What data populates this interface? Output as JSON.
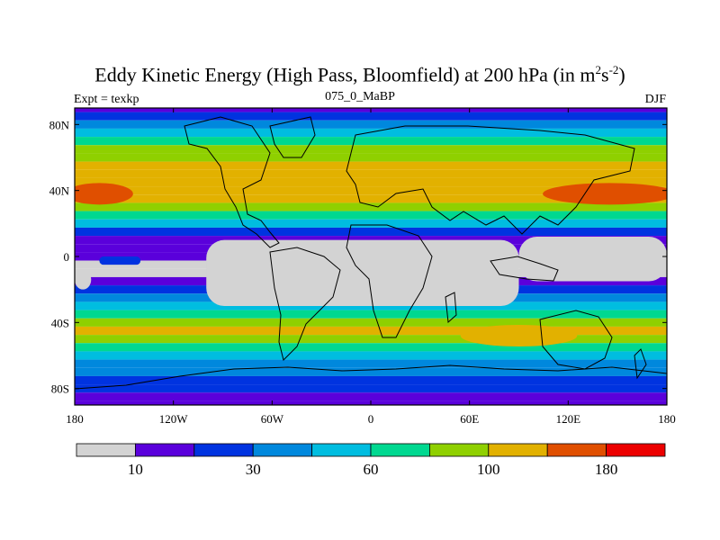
{
  "title": {
    "main": "Eddy Kinetic Energy (High Pass, Bloomfield) at 200 hPa (in m",
    "sup1": "2",
    "mid": "s",
    "sup2": "-2",
    "end": ")"
  },
  "left_label": "Expt = texkp",
  "center_label": "075_0_MaBP",
  "right_label": "DJF",
  "colors": {
    "bins": [
      "#d3d3d3",
      "#5a00db",
      "#0033e0",
      "#0088dd",
      "#00bde0",
      "#00d890",
      "#8fd000",
      "#e2b100",
      "#e04f00",
      "#ec0000"
    ],
    "frame": "#000000"
  },
  "chart_data": {
    "type": "heatmap",
    "title": "Eddy Kinetic Energy (High Pass, Bloomfield) at 200 hPa (in m^2 s^-2)",
    "x_axis": {
      "range": [
        -180,
        180
      ],
      "ticks": [
        -180,
        -120,
        -60,
        0,
        60,
        120,
        180
      ],
      "tick_labels": [
        "180",
        "120W",
        "60W",
        "0",
        "60E",
        "120E",
        "180"
      ]
    },
    "y_axis": {
      "range": [
        -90,
        90
      ],
      "ticks": [
        80,
        40,
        0,
        -40,
        -80
      ],
      "tick_labels": [
        "80N",
        "40N",
        "0",
        "40S",
        "80S"
      ]
    },
    "colorbar": {
      "levels": [
        10,
        30,
        60,
        100,
        180
      ],
      "level_labels": [
        "10",
        "30",
        "60",
        "100",
        "180"
      ],
      "n_bins": 10
    },
    "zonal_mean_bins": [
      {
        "lat": 90,
        "bin": 1
      },
      {
        "lat": 85,
        "bin": 2
      },
      {
        "lat": 80,
        "bin": 3
      },
      {
        "lat": 75,
        "bin": 4
      },
      {
        "lat": 70,
        "bin": 5
      },
      {
        "lat": 65,
        "bin": 6
      },
      {
        "lat": 60,
        "bin": 6
      },
      {
        "lat": 55,
        "bin": 7
      },
      {
        "lat": 50,
        "bin": 7
      },
      {
        "lat": 45,
        "bin": 7
      },
      {
        "lat": 40,
        "bin": 7
      },
      {
        "lat": 35,
        "bin": 7
      },
      {
        "lat": 30,
        "bin": 6
      },
      {
        "lat": 25,
        "bin": 5
      },
      {
        "lat": 20,
        "bin": 4
      },
      {
        "lat": 15,
        "bin": 2
      },
      {
        "lat": 10,
        "bin": 1
      },
      {
        "lat": 5,
        "bin": 1
      },
      {
        "lat": 0,
        "bin": 1
      },
      {
        "lat": -5,
        "bin": 0
      },
      {
        "lat": -10,
        "bin": 0
      },
      {
        "lat": -15,
        "bin": 1
      },
      {
        "lat": -20,
        "bin": 2
      },
      {
        "lat": -25,
        "bin": 3
      },
      {
        "lat": -30,
        "bin": 4
      },
      {
        "lat": -35,
        "bin": 5
      },
      {
        "lat": -40,
        "bin": 6
      },
      {
        "lat": -45,
        "bin": 7
      },
      {
        "lat": -50,
        "bin": 6
      },
      {
        "lat": -55,
        "bin": 5
      },
      {
        "lat": -60,
        "bin": 4
      },
      {
        "lat": -65,
        "bin": 3
      },
      {
        "lat": -70,
        "bin": 3
      },
      {
        "lat": -75,
        "bin": 2
      },
      {
        "lat": -80,
        "bin": 2
      },
      {
        "lat": -85,
        "bin": 1
      },
      {
        "lat": -90,
        "bin": 1
      }
    ],
    "storm_tracks": [
      {
        "name": "north-pacific-jet",
        "lon_range": [
          110,
          180
        ],
        "lat": 38,
        "peak_bin": 8
      },
      {
        "name": "north-atlantic-jet",
        "lon_range": [
          -180,
          -150
        ],
        "lat": 38,
        "peak_bin": 8
      },
      {
        "name": "southern-ocean-track",
        "lon_range": [
          60,
          120
        ],
        "lat": -48,
        "peak_bin": 7
      }
    ],
    "minimum_regions": [
      {
        "name": "tropical-min-west",
        "lon_range": [
          -180,
          -170
        ],
        "lat_range": [
          -20,
          -8
        ],
        "bin": 0
      },
      {
        "name": "tropical-min-central",
        "lon_range": [
          -100,
          90
        ],
        "lat_range": [
          -30,
          10
        ],
        "bin": 0
      },
      {
        "name": "tropical-min-east",
        "lon_range": [
          90,
          180
        ],
        "lat_range": [
          -15,
          12
        ],
        "bin": 0
      },
      {
        "name": "east-pacific-low",
        "lon_range": [
          -165,
          -140
        ],
        "lat_range": [
          -5,
          0
        ],
        "bin": 2
      }
    ]
  }
}
